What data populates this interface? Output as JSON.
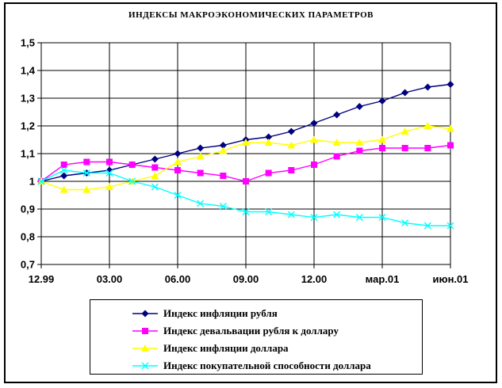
{
  "title": "ИНДЕКСЫ МАКРОЭКОНОМИЧЕСКИХ ПАРАМЕТРОВ",
  "colors": {
    "background": "#FFFFFF",
    "grid": "#000000",
    "frame": "#000000",
    "series_navy": "#000080",
    "series_magenta": "#FF00FF",
    "series_yellow": "#FFFF00",
    "series_cyan": "#00FFFF"
  },
  "y_axis": {
    "tick_labels": [
      "1,5",
      "1,4",
      "1,3",
      "1,2",
      "1,1",
      "1",
      "0,9",
      "0,8",
      "0,7"
    ],
    "min": 0.7,
    "max": 1.5,
    "step": 0.1
  },
  "x_axis": {
    "tick_labels": [
      "12.99",
      "03.00",
      "06.00",
      "09.00",
      "12.00",
      "мар.01",
      "июн.01"
    ],
    "tick_point_indices": [
      0,
      3,
      6,
      9,
      12,
      15,
      18
    ],
    "points_total": 19
  },
  "chart_data": {
    "type": "line",
    "title": "ИНДЕКСЫ МАКРОЭКОНОМИЧЕСКИХ ПАРАМЕТРОВ",
    "x_tick_labels": [
      "12.99",
      "03.00",
      "06.00",
      "09.00",
      "12.00",
      "мар.01",
      "июн.01"
    ],
    "x_tick_point_indices": [
      0,
      3,
      6,
      9,
      12,
      15,
      18
    ],
    "n_points": 19,
    "ylim": [
      0.7,
      1.5
    ],
    "y_step": 0.1,
    "grid": true,
    "legend_position": "bottom",
    "series": [
      {
        "name": "Индекс инфляции рубля",
        "color": "#000080",
        "marker": "diamond",
        "values": [
          1.0,
          1.02,
          1.03,
          1.04,
          1.06,
          1.08,
          1.1,
          1.12,
          1.13,
          1.15,
          1.16,
          1.18,
          1.21,
          1.24,
          1.27,
          1.29,
          1.32,
          1.34,
          1.35
        ]
      },
      {
        "name": "Индекс девальвации рубля к доллару",
        "color": "#FF00FF",
        "marker": "square",
        "values": [
          1.0,
          1.06,
          1.07,
          1.07,
          1.06,
          1.05,
          1.04,
          1.03,
          1.02,
          1.0,
          1.03,
          1.04,
          1.06,
          1.09,
          1.11,
          1.12,
          1.12,
          1.12,
          1.13
        ]
      },
      {
        "name": "Индекс инфляции доллара",
        "color": "#FFFF00",
        "marker": "triangle",
        "values": [
          1.0,
          0.97,
          0.97,
          0.98,
          1.0,
          1.02,
          1.07,
          1.09,
          1.11,
          1.14,
          1.14,
          1.13,
          1.15,
          1.14,
          1.14,
          1.15,
          1.18,
          1.2,
          1.19
        ]
      },
      {
        "name": "Индекс покупательной способности доллара",
        "color": "#00FFFF",
        "marker": "x",
        "values": [
          1.0,
          1.04,
          1.03,
          1.03,
          1.0,
          0.98,
          0.95,
          0.92,
          0.91,
          0.89,
          0.89,
          0.88,
          0.87,
          0.88,
          0.87,
          0.87,
          0.85,
          0.84,
          0.84
        ]
      }
    ]
  }
}
